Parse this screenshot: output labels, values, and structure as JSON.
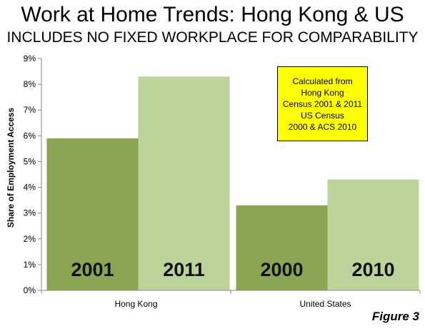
{
  "title": "Work at Home Trends: Hong Kong & US",
  "subtitle": "INCLUDES NO FIXED WORKPLACE FOR COMPARABILITY",
  "figure_label": "Figure 3",
  "note_lines": [
    "Calculated from",
    "Hong Kong",
    "Census 2001 & 2011",
    "US Census",
    "2000 & ACS 2010"
  ],
  "chart_data": {
    "type": "bar",
    "title": "Work at Home Trends: Hong Kong & US",
    "subtitle": "INCLUDES NO FIXED WORKPLACE FOR COMPARABILITY",
    "ylabel": "Share of Employment Access",
    "xlabel": "",
    "categories": [
      "Hong Kong",
      "United States"
    ],
    "bars": [
      {
        "category": "Hong Kong",
        "label": "2001",
        "value": 5.9,
        "color": "#8aa652"
      },
      {
        "category": "Hong Kong",
        "label": "2011",
        "value": 8.3,
        "color": "#bcd39a"
      },
      {
        "category": "United States",
        "label": "2000",
        "value": 3.3,
        "color": "#8aa652"
      },
      {
        "category": "United States",
        "label": "2010",
        "value": 4.3,
        "color": "#bcd39a"
      }
    ],
    "ylim": [
      0,
      9
    ],
    "yticks": [
      "0%",
      "1%",
      "2%",
      "3%",
      "4%",
      "5%",
      "6%",
      "7%",
      "8%",
      "9%"
    ],
    "grid": false
  }
}
